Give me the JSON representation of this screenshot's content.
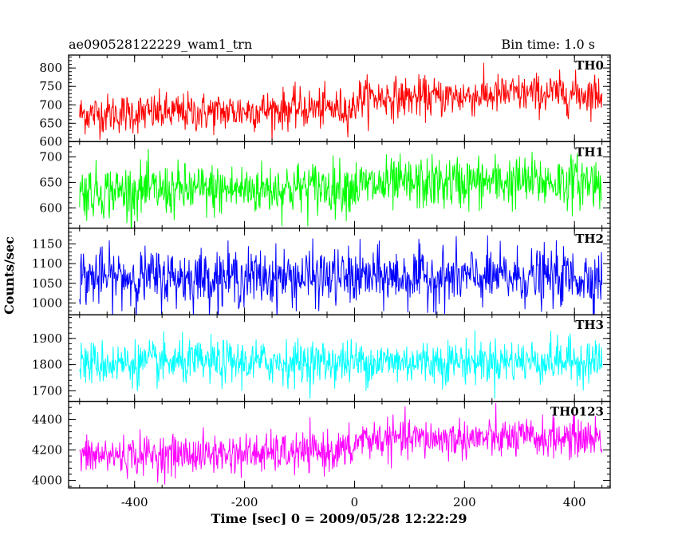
{
  "header": {
    "title": "ae090528122229_wam1_trn",
    "bin_time": "Bin time: 1.0 s"
  },
  "chart_data": {
    "type": "line",
    "xlabel": "Time [sec] 0 = 2009/05/28 12:22:29",
    "ylabel": "Counts/sec",
    "xlim": [
      -520,
      465
    ],
    "x_ticks": [
      -400,
      -200,
      0,
      200,
      400
    ],
    "x_range_data": [
      -500,
      450
    ],
    "bin_seconds": 1.0,
    "grid": false,
    "panels": [
      {
        "name": "TH0",
        "color": "#ff0000",
        "ylim": [
          600,
          835
        ],
        "y_ticks": [
          600,
          650,
          700,
          750,
          800
        ],
        "level_points": [
          [
            -500,
            675
          ],
          [
            -250,
            680
          ],
          [
            -100,
            690
          ],
          [
            0,
            690
          ],
          [
            5,
            720
          ],
          [
            150,
            720
          ],
          [
            300,
            730
          ],
          [
            450,
            730
          ]
        ],
        "noise_sd": 27
      },
      {
        "name": "TH1",
        "color": "#00ff00",
        "ylim": [
          560,
          730
        ],
        "y_ticks": [
          600,
          650,
          700
        ],
        "level_points": [
          [
            -500,
            632
          ],
          [
            -250,
            635
          ],
          [
            0,
            642
          ],
          [
            200,
            650
          ],
          [
            450,
            652
          ]
        ],
        "noise_sd": 26
      },
      {
        "name": "TH2",
        "color": "#0000ff",
        "ylim": [
          970,
          1190
        ],
        "y_ticks": [
          1000,
          1050,
          1100,
          1150
        ],
        "level_points": [
          [
            -500,
            1065
          ],
          [
            450,
            1065
          ]
        ],
        "noise_sd": 36
      },
      {
        "name": "TH3",
        "color": "#00ffff",
        "ylim": [
          1660,
          1990
        ],
        "y_ticks": [
          1700,
          1800,
          1900
        ],
        "level_points": [
          [
            -500,
            1805
          ],
          [
            0,
            1810
          ],
          [
            450,
            1815
          ]
        ],
        "noise_sd": 42
      },
      {
        "name": "TH0123",
        "color": "#ff00ff",
        "ylim": [
          3950,
          4520
        ],
        "y_ticks": [
          4000,
          4200,
          4400
        ],
        "level_points": [
          [
            -500,
            4160
          ],
          [
            -100,
            4180
          ],
          [
            0,
            4200
          ],
          [
            5,
            4270
          ],
          [
            450,
            4280
          ]
        ],
        "noise_sd": 65
      }
    ]
  }
}
